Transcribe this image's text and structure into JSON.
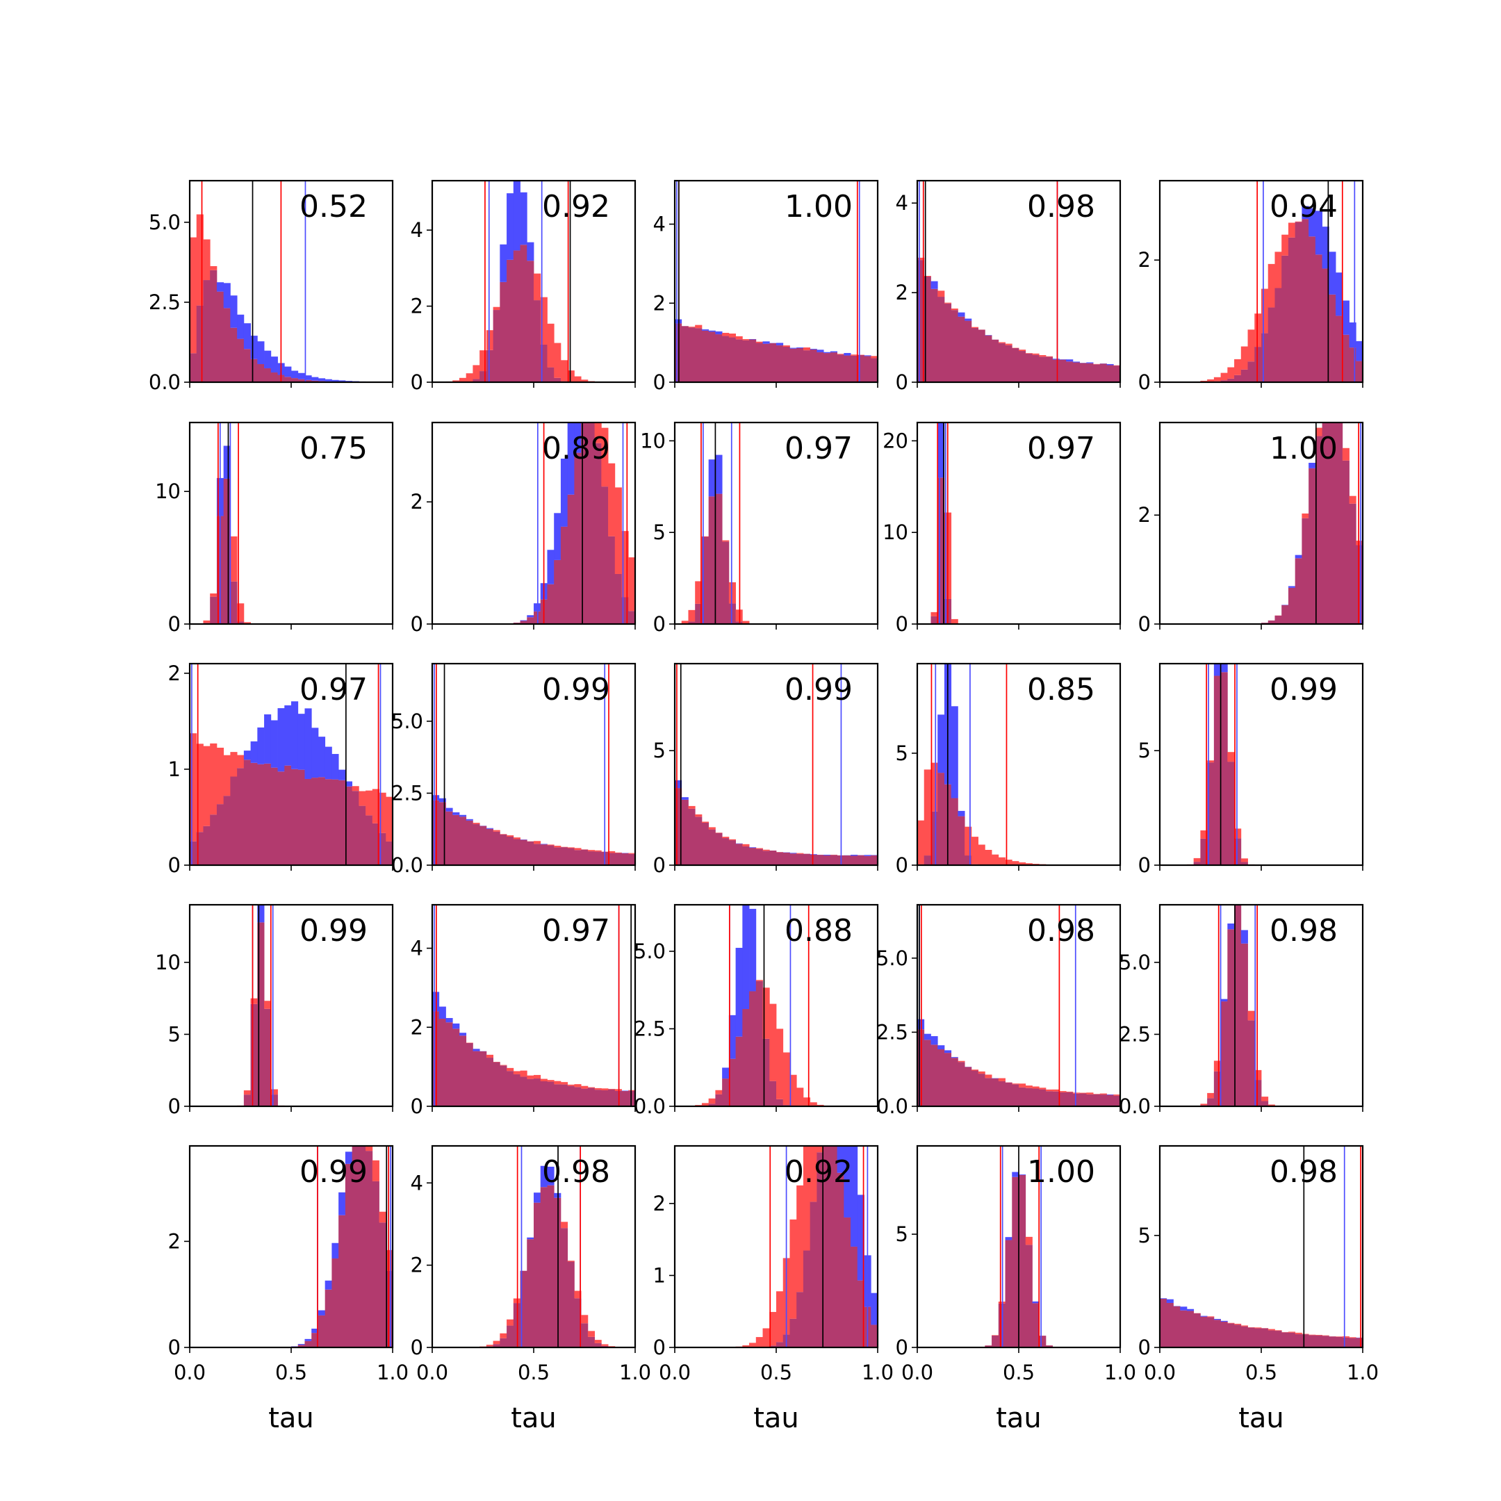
{
  "chart_data": {
    "type": "histogram-grid",
    "rows": 5,
    "cols": 5,
    "xlabel": "tau",
    "xlim": [
      0,
      1
    ],
    "xticks": [
      "0.0",
      "0.5",
      "1.0"
    ],
    "bins": 30,
    "colors": {
      "series_a": "#4d4dff",
      "series_b": "#ff5050",
      "overlap": "#b23a6e",
      "median_line": "#000000"
    },
    "panels": [
      {
        "label": "0.52",
        "dist": {
          "a": [
            "gamma",
            2.2,
            0.1
          ],
          "b": [
            "gamma",
            1.4,
            0.1
          ]
        },
        "ylim": [
          0,
          6.3
        ],
        "yticks": [
          {
            "v": 0,
            "t": "0.0"
          },
          {
            "v": 2.5,
            "t": "2.5"
          },
          {
            "v": 5,
            "t": "5.0"
          }
        ],
        "lines": {
          "black": [
            0.31
          ],
          "blue": [
            0.0,
            0.57
          ],
          "red": [
            0.06,
            0.45
          ]
        }
      },
      {
        "label": "0.92",
        "dist": {
          "a": [
            "normal",
            0.42,
            0.07
          ],
          "b": [
            "normal",
            0.44,
            0.11
          ]
        },
        "ylim": [
          0,
          5.3
        ],
        "yticks": [
          {
            "v": 0,
            "t": "0"
          },
          {
            "v": 2,
            "t": "2"
          },
          {
            "v": 4,
            "t": "4"
          }
        ],
        "lines": {
          "black": [
            0.68
          ],
          "blue": [
            0.28,
            0.54
          ],
          "red": [
            0.26,
            0.67
          ]
        }
      },
      {
        "label": "1.00",
        "dist": {
          "a": [
            "decay",
            1.1
          ],
          "b": [
            "decay",
            1.1
          ]
        },
        "ylim": [
          0,
          5.1
        ],
        "yticks": [
          {
            "v": 0,
            "t": "0"
          },
          {
            "v": 2,
            "t": "2"
          },
          {
            "v": 4,
            "t": "4"
          }
        ],
        "lines": {
          "black": [
            0.02
          ],
          "blue": [
            0.01,
            0.91
          ],
          "red": [
            0.02,
            0.9
          ]
        }
      },
      {
        "label": "0.98",
        "dist": {
          "a": [
            "decay",
            3.5
          ],
          "b": [
            "decay",
            3.5
          ]
        },
        "ylim": [
          0,
          4.5
        ],
        "yticks": [
          {
            "v": 0,
            "t": "0"
          },
          {
            "v": 2,
            "t": "2"
          },
          {
            "v": 4,
            "t": "4"
          }
        ],
        "lines": {
          "black": [
            0.04
          ],
          "blue": [
            0.01,
            0.69
          ],
          "red": [
            0.03,
            0.69
          ]
        }
      },
      {
        "label": "0.94",
        "dist": {
          "a": [
            "normal",
            0.74,
            0.14
          ],
          "b": [
            "normal",
            0.68,
            0.15
          ]
        },
        "ylim": [
          0,
          3.3
        ],
        "yticks": [
          {
            "v": 0,
            "t": "0"
          },
          {
            "v": 2,
            "t": "2"
          }
        ],
        "lines": {
          "black": [
            0.83
          ],
          "blue": [
            0.51,
            0.96
          ],
          "red": [
            0.48,
            0.9
          ]
        }
      },
      {
        "label": "0.75",
        "dist": {
          "a": [
            "normal",
            0.17,
            0.027
          ],
          "b": [
            "normal",
            0.18,
            0.035
          ]
        },
        "ylim": [
          0,
          15.2
        ],
        "yticks": [
          {
            "v": 0,
            "t": "0"
          },
          {
            "v": 10,
            "t": "10"
          }
        ],
        "lines": {
          "black": [
            0.19
          ],
          "blue": [
            0.15,
            0.2
          ],
          "red": [
            0.14,
            0.24
          ]
        }
      },
      {
        "label": "0.89",
        "dist": {
          "a": [
            "normal",
            0.74,
            0.1
          ],
          "b": [
            "normal",
            0.8,
            0.12
          ]
        },
        "ylim": [
          0,
          3.3
        ],
        "yticks": [
          {
            "v": 0,
            "t": "0"
          },
          {
            "v": 2,
            "t": "2"
          }
        ],
        "lines": {
          "black": [
            0.74
          ],
          "blue": [
            0.52,
            0.94
          ],
          "red": [
            0.55,
            0.96
          ]
        }
      },
      {
        "label": "0.97",
        "dist": {
          "a": [
            "normal",
            0.2,
            0.04
          ],
          "b": [
            "normal",
            0.2,
            0.055
          ]
        },
        "ylim": [
          0,
          11
        ],
        "yticks": [
          {
            "v": 0,
            "t": "0"
          },
          {
            "v": 5,
            "t": "5"
          },
          {
            "v": 10,
            "t": "10"
          }
        ],
        "lines": {
          "black": [
            0.2
          ],
          "blue": [
            0.14,
            0.28
          ],
          "red": [
            0.13,
            0.32
          ]
        }
      },
      {
        "label": "0.97",
        "dist": {
          "a": [
            "normal",
            0.12,
            0.014
          ],
          "b": [
            "normal",
            0.13,
            0.02
          ]
        },
        "ylim": [
          0,
          22
        ],
        "yticks": [
          {
            "v": 0,
            "t": "0"
          },
          {
            "v": 10,
            "t": "10"
          },
          {
            "v": 20,
            "t": "20"
          }
        ],
        "lines": {
          "black": [
            0.13
          ],
          "blue": [
            0.11,
            0.14
          ],
          "red": [
            0.1,
            0.15
          ]
        }
      },
      {
        "label": "1.00",
        "dist": {
          "a": [
            "normal",
            0.84,
            0.1
          ],
          "b": [
            "normal",
            0.84,
            0.1
          ]
        },
        "ylim": [
          0,
          3.7
        ],
        "yticks": [
          {
            "v": 0,
            "t": "0"
          },
          {
            "v": 2,
            "t": "2"
          }
        ],
        "lines": {
          "black": [
            0.77
          ],
          "blue": [
            0.99
          ],
          "red": [
            0.98
          ]
        }
      },
      {
        "label": "0.97",
        "dist": {
          "a": [
            "normal",
            0.5,
            0.25
          ],
          "b": [
            "decay",
            0.7
          ]
        },
        "ylim": [
          0,
          2.1
        ],
        "yticks": [
          {
            "v": 0,
            "t": "0"
          },
          {
            "v": 1,
            "t": "1"
          },
          {
            "v": 2,
            "t": "2"
          }
        ],
        "lines": {
          "black": [
            0.77
          ],
          "blue": [
            0.01,
            0.94
          ],
          "red": [
            0.04,
            0.93
          ]
        }
      },
      {
        "label": "0.99",
        "dist": {
          "a": [
            "decay",
            3
          ],
          "b": [
            "decay",
            2.6
          ]
        },
        "ylim": [
          0,
          7
        ],
        "yticks": [
          {
            "v": 0,
            "t": "0.0"
          },
          {
            "v": 2.5,
            "t": "2.5"
          },
          {
            "v": 5,
            "t": "5.0"
          }
        ],
        "lines": {
          "black": [
            0.06
          ],
          "blue": [
            0.01,
            0.85
          ],
          "red": [
            0.02,
            0.87
          ]
        }
      },
      {
        "label": "0.99",
        "dist": {
          "a": [
            "decay",
            6
          ],
          "b": [
            "decay",
            5.5
          ]
        },
        "ylim": [
          0,
          8.8
        ],
        "yticks": [
          {
            "v": 0,
            "t": "0"
          },
          {
            "v": 5,
            "t": "5"
          }
        ],
        "lines": {
          "black": [
            0.03
          ],
          "blue": [
            0.0,
            0.82
          ],
          "red": [
            0.01,
            0.68
          ]
        }
      },
      {
        "label": "0.85",
        "dist": {
          "a": [
            "normal",
            0.15,
            0.04
          ],
          "b": [
            "gamma",
            2.0,
            0.08
          ]
        },
        "ylim": [
          0,
          9
        ],
        "yticks": [
          {
            "v": 0,
            "t": "0"
          },
          {
            "v": 5,
            "t": "5"
          }
        ],
        "lines": {
          "black": [
            0.15
          ],
          "blue": [
            0.09,
            0.26
          ],
          "red": [
            0.07,
            0.44
          ]
        }
      },
      {
        "label": "0.99",
        "dist": {
          "a": [
            "normal",
            0.3,
            0.04
          ],
          "b": [
            "normal",
            0.3,
            0.045
          ]
        },
        "ylim": [
          0,
          8.8
        ],
        "yticks": [
          {
            "v": 0,
            "t": "0"
          },
          {
            "v": 5,
            "t": "5"
          }
        ],
        "lines": {
          "black": [
            0.3
          ],
          "blue": [
            0.24,
            0.38
          ],
          "red": [
            0.23,
            0.37
          ]
        }
      },
      {
        "label": "0.99",
        "dist": {
          "a": [
            "normal",
            0.35,
            0.028
          ],
          "b": [
            "normal",
            0.35,
            0.03
          ]
        },
        "ylim": [
          0,
          14
        ],
        "yticks": [
          {
            "v": 0,
            "t": "0"
          },
          {
            "v": 5,
            "t": "5"
          },
          {
            "v": 10,
            "t": "10"
          }
        ],
        "lines": {
          "black": [
            0.34
          ],
          "blue": [
            0.31,
            0.41
          ],
          "red": [
            0.31,
            0.4
          ]
        }
      },
      {
        "label": "0.97",
        "dist": {
          "a": [
            "decay",
            4
          ],
          "b": [
            "decay",
            3
          ]
        },
        "ylim": [
          0,
          5.1
        ],
        "yticks": [
          {
            "v": 0,
            "t": "0"
          },
          {
            "v": 2,
            "t": "2"
          },
          {
            "v": 4,
            "t": "4"
          }
        ],
        "lines": {
          "black": [
            0.98
          ],
          "blue": [
            0.01,
            0.92
          ],
          "red": [
            0.02,
            0.92
          ]
        }
      },
      {
        "label": "0.88",
        "dist": {
          "a": [
            "normal",
            0.36,
            0.06
          ],
          "b": [
            "normal",
            0.42,
            0.1
          ]
        },
        "ylim": [
          0,
          6.5
        ],
        "yticks": [
          {
            "v": 0,
            "t": "0.0"
          },
          {
            "v": 2.5,
            "t": "2.5"
          },
          {
            "v": 5,
            "t": "5.0"
          }
        ],
        "lines": {
          "black": [
            0.44
          ],
          "blue": [
            0.27,
            0.57
          ],
          "red": [
            0.27,
            0.66
          ]
        }
      },
      {
        "label": "0.98",
        "dist": {
          "a": [
            "decay",
            4
          ],
          "b": [
            "decay",
            3.2
          ]
        },
        "ylim": [
          0,
          6.8
        ],
        "yticks": [
          {
            "v": 0,
            "t": "0.0"
          },
          {
            "v": 2.5,
            "t": "2.5"
          },
          {
            "v": 5,
            "t": "5.0"
          }
        ],
        "lines": {
          "black": [
            0.01
          ],
          "blue": [
            0.01,
            0.78
          ],
          "red": [
            0.02,
            0.7
          ]
        }
      },
      {
        "label": "0.98",
        "dist": {
          "a": [
            "normal",
            0.38,
            0.05
          ],
          "b": [
            "normal",
            0.38,
            0.055
          ]
        },
        "ylim": [
          0,
          7
        ],
        "yticks": [
          {
            "v": 0,
            "t": "0.0"
          },
          {
            "v": 2.5,
            "t": "2.5"
          },
          {
            "v": 5,
            "t": "5.0"
          }
        ],
        "lines": {
          "black": [
            0.37
          ],
          "blue": [
            0.3,
            0.47
          ],
          "red": [
            0.29,
            0.48
          ]
        }
      },
      {
        "label": "0.99",
        "dist": {
          "a": [
            "normal",
            0.84,
            0.1
          ],
          "b": [
            "normal",
            0.85,
            0.1
          ]
        },
        "ylim": [
          0,
          3.8
        ],
        "yticks": [
          {
            "v": 0,
            "t": "0"
          },
          {
            "v": 2,
            "t": "2"
          }
        ],
        "lines": {
          "black": [
            0.97
          ],
          "blue": [
            0.63,
            0.99
          ],
          "red": [
            0.63,
            0.98
          ]
        }
      },
      {
        "label": "0.98",
        "dist": {
          "a": [
            "normal",
            0.57,
            0.09
          ],
          "b": [
            "normal",
            0.57,
            0.1
          ]
        },
        "ylim": [
          0,
          4.9
        ],
        "yticks": [
          {
            "v": 0,
            "t": "0"
          },
          {
            "v": 2,
            "t": "2"
          },
          {
            "v": 4,
            "t": "4"
          }
        ],
        "lines": {
          "black": [
            0.62
          ],
          "blue": [
            0.44,
            0.73
          ],
          "red": [
            0.42,
            0.73
          ]
        }
      },
      {
        "label": "0.92",
        "dist": {
          "a": [
            "normal",
            0.8,
            0.1
          ],
          "b": [
            "normal",
            0.72,
            0.12
          ]
        },
        "ylim": [
          0,
          2.8
        ],
        "yticks": [
          {
            "v": 0,
            "t": "0"
          },
          {
            "v": 1,
            "t": "1"
          },
          {
            "v": 2,
            "t": "2"
          }
        ],
        "lines": {
          "black": [
            0.73
          ],
          "blue": [
            0.55,
            0.95
          ],
          "red": [
            0.47,
            0.93
          ]
        }
      },
      {
        "label": "1.00",
        "dist": {
          "a": [
            "normal",
            0.5,
            0.05
          ],
          "b": [
            "normal",
            0.5,
            0.05
          ]
        },
        "ylim": [
          0,
          8.9
        ],
        "yticks": [
          {
            "v": 0,
            "t": "0"
          },
          {
            "v": 5,
            "t": "5"
          }
        ],
        "lines": {
          "black": [
            0.5
          ],
          "blue": [
            0.42,
            0.61
          ],
          "red": [
            0.41,
            0.6
          ]
        }
      },
      {
        "label": "0.98",
        "dist": {
          "a": [
            "decay",
            2.5
          ],
          "b": [
            "decay",
            2.3
          ]
        },
        "ylim": [
          0,
          9
        ],
        "yticks": [
          {
            "v": 0,
            "t": "0"
          },
          {
            "v": 5,
            "t": "5"
          }
        ],
        "lines": {
          "black": [
            0.71
          ],
          "blue": [
            0.0,
            0.91
          ],
          "red": [
            0.0,
            0.99
          ]
        }
      }
    ]
  }
}
